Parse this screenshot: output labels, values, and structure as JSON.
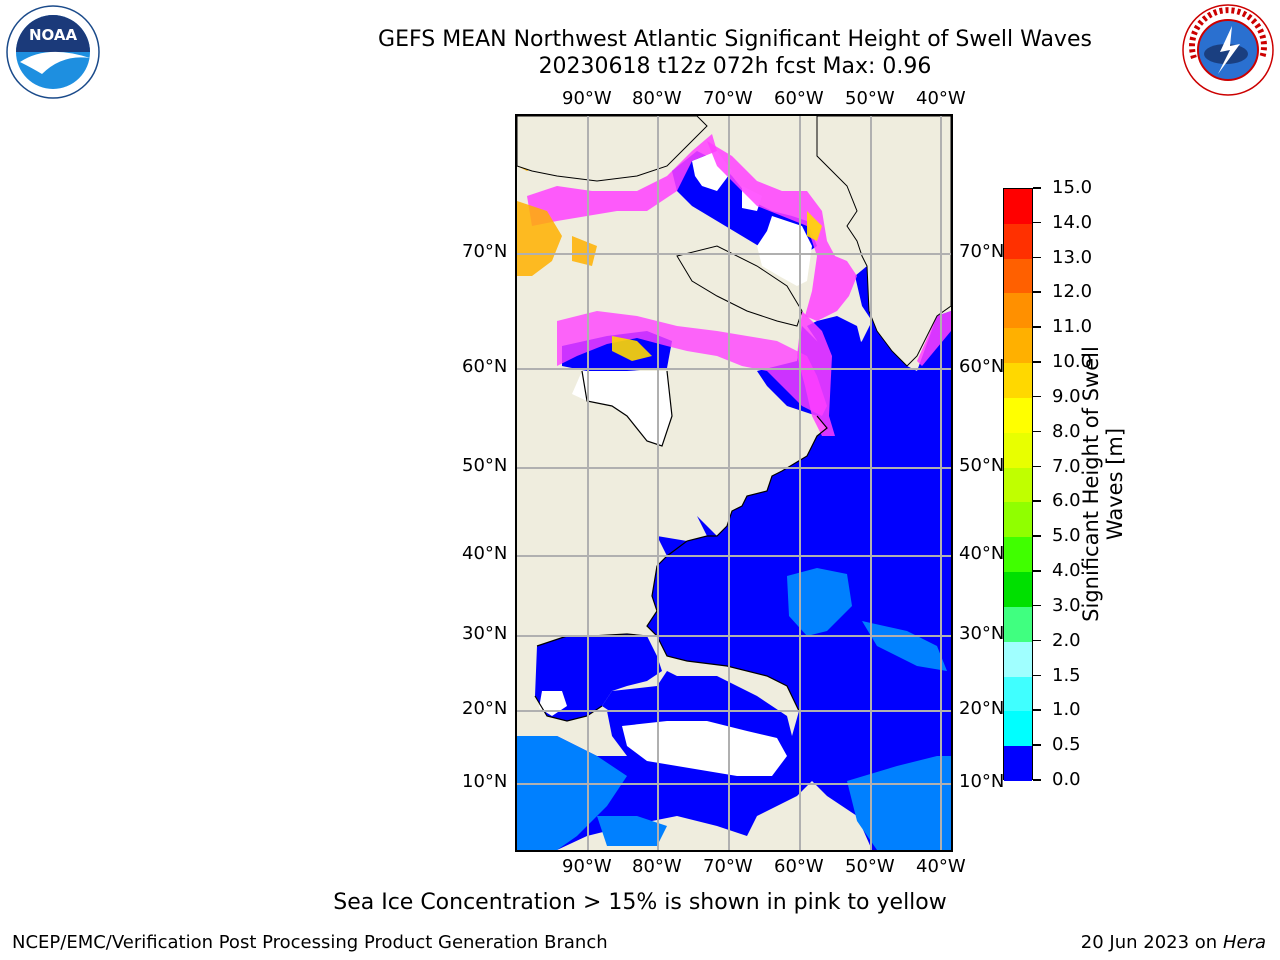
{
  "title": {
    "line1": "GEFS MEAN Northwest Atlantic Significant Height of Swell Waves",
    "line2": "20230618 t12z 072h fcst   Max: 0.96"
  },
  "map": {
    "lon_ticks": [
      "90°W",
      "80°W",
      "70°W",
      "60°W",
      "50°W",
      "40°W"
    ],
    "lat_ticks_left": [
      "70°N",
      "60°N",
      "50°N",
      "40°N",
      "30°N",
      "20°N",
      "10°N"
    ],
    "lat_ticks_right": [
      "70°N",
      "60°N",
      "50°N",
      "40°N",
      "30°N",
      "20°N",
      "10°N"
    ],
    "colors": {
      "land": "#efedde",
      "ocean_low": "#0000ff",
      "ocean_mid": "#0080ff",
      "ice": "#ff40ff",
      "coast": "#000000",
      "grid": "#b0b0b0"
    }
  },
  "colorbar": {
    "label": "Significant Height of Swell Waves [m]",
    "tick_labels": [
      "15.0",
      "14.0",
      "13.0",
      "12.0",
      "11.0",
      "10.0",
      "9.0",
      "8.0",
      "7.0",
      "6.0",
      "5.0",
      "4.0",
      "3.0",
      "2.0",
      "1.5",
      "1.0",
      "0.5",
      "0.0"
    ],
    "colors": [
      "#ff0000",
      "#ff3000",
      "#ff6000",
      "#ff9000",
      "#ffb000",
      "#ffd800",
      "#ffff00",
      "#e8ff00",
      "#c0ff00",
      "#90ff00",
      "#40ff00",
      "#00e000",
      "#40ff80",
      "#a0ffff",
      "#40ffff",
      "#00ffff",
      "#0080ff",
      "#0000ff"
    ]
  },
  "logos": {
    "left": "NOAA",
    "right": "NATIONAL WEATHER SERVICE"
  },
  "footer": {
    "note": "Sea Ice Concentration > 15% is shown in pink to yellow",
    "credit": "NCEP/EMC/Verification Post Processing Product Generation Branch",
    "date": "20 Jun 2023 on",
    "machine": "Hera"
  }
}
